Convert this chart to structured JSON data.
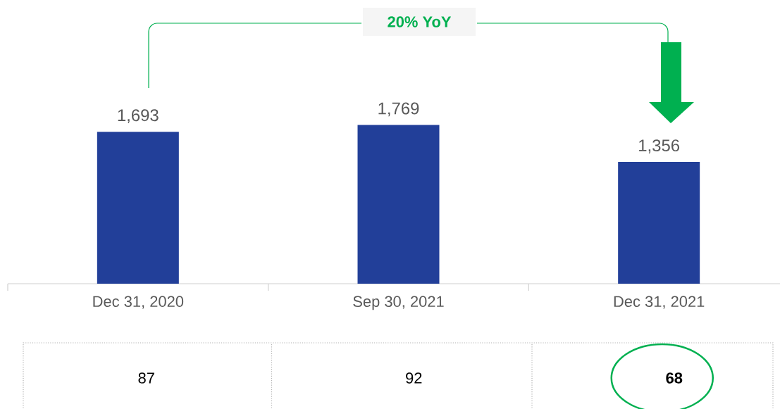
{
  "chart_data": {
    "type": "bar",
    "categories": [
      "Dec 31, 2020",
      "Sep 30, 2021",
      "Dec 31, 2021"
    ],
    "values": [
      1693,
      1769,
      1356
    ],
    "value_labels": [
      "1,693",
      "1,769",
      "1,356"
    ],
    "color": "#223f99",
    "annotations": [
      "20% YoY",
      "87",
      "92",
      "68"
    ]
  }
}
